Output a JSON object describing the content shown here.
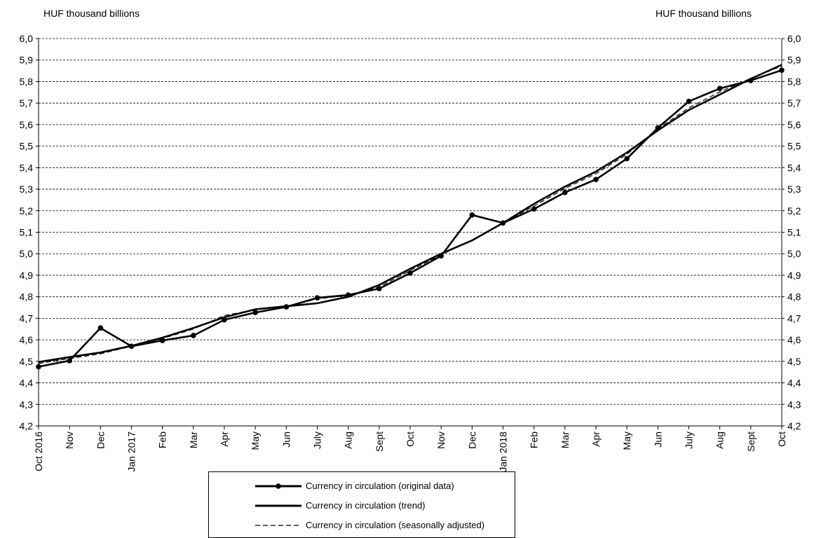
{
  "y_unit_left": "HUF thousand billions",
  "y_unit_right": "HUF thousand billions",
  "chart_data": {
    "type": "line",
    "categories": [
      "Oct 2016",
      "Nov",
      "Dec",
      "Jan 2017",
      "Feb",
      "Mar",
      "Apr",
      "May",
      "Jun",
      "July",
      "Aug",
      "Sept",
      "Oct",
      "Nov",
      "Dec",
      "Jan 2018",
      "Feb",
      "Mar",
      "Apr",
      "May",
      "Jun",
      "July",
      "Aug",
      "Sept",
      "Oct"
    ],
    "ylim": [
      4.2,
      6.0
    ],
    "y_ticks": [
      "4,2",
      "4,3",
      "4,4",
      "4,5",
      "4,6",
      "4,7",
      "4,8",
      "4,9",
      "5,0",
      "5,1",
      "5,2",
      "5,3",
      "5,4",
      "5,5",
      "5,6",
      "5,7",
      "5,8",
      "5,9",
      "6,0"
    ],
    "grid": "horizontal dashed",
    "legend_position": "bottom",
    "series": [
      {
        "name": "Currency in circulation (original data)",
        "style": "solid-markers",
        "values": [
          4.475,
          4.503,
          4.655,
          4.57,
          4.597,
          4.62,
          4.693,
          4.727,
          4.753,
          4.795,
          4.808,
          4.838,
          4.91,
          4.99,
          5.18,
          5.143,
          5.208,
          5.285,
          5.345,
          5.442,
          5.585,
          5.708,
          5.768,
          5.805,
          5.853
        ]
      },
      {
        "name": "Currency in circulation (trend)",
        "style": "solid",
        "values": [
          4.497,
          4.52,
          4.541,
          4.572,
          4.61,
          4.655,
          4.705,
          4.742,
          4.756,
          4.77,
          4.8,
          4.855,
          4.93,
          5.0,
          5.062,
          5.143,
          5.232,
          5.312,
          5.382,
          5.47,
          5.573,
          5.668,
          5.74,
          5.813,
          5.878
        ]
      },
      {
        "name": "Currency in circulation (seasonally adjusted)",
        "style": "dashed",
        "values": [
          4.49,
          4.513,
          4.535,
          4.57,
          4.606,
          4.65,
          4.713,
          4.74,
          4.755,
          4.79,
          4.807,
          4.845,
          4.922,
          4.995,
          5.065,
          5.143,
          5.222,
          5.303,
          5.372,
          5.462,
          5.58,
          5.678,
          5.752,
          5.815,
          5.872
        ]
      }
    ]
  },
  "colors": {
    "line": "#000000",
    "grid": "#000000",
    "background": "#ffffff"
  }
}
